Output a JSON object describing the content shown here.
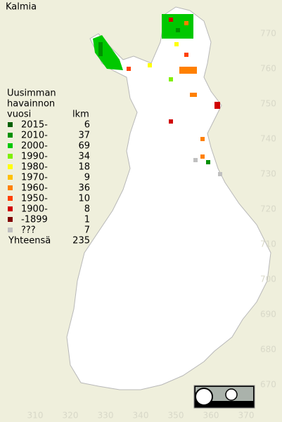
{
  "title": "Kalmia",
  "legend": {
    "header": [
      "Uusimman",
      "havainnon",
      "vuosi"
    ],
    "count_header": "lkm",
    "rows": [
      {
        "label": "2015-",
        "count": 6,
        "color": "#006000"
      },
      {
        "label": "2010-",
        "count": 37,
        "color": "#009000"
      },
      {
        "label": "2000-",
        "count": 69,
        "color": "#00c800"
      },
      {
        "label": "1990-",
        "count": 34,
        "color": "#80f000"
      },
      {
        "label": "1980-",
        "count": 18,
        "color": "#ffff00"
      },
      {
        "label": "1970-",
        "count": 9,
        "color": "#ffc000"
      },
      {
        "label": "1960-",
        "count": 36,
        "color": "#ff8000"
      },
      {
        "label": "1950-",
        "count": 10,
        "color": "#ff4000"
      },
      {
        "label": "1900-",
        "count": 8,
        "color": "#d00000"
      },
      {
        "label": "-1899",
        "count": 1,
        "color": "#800000"
      },
      {
        "label": "???",
        "count": 7,
        "color": "#c0c0c0"
      }
    ],
    "total_label": "Yhteensä",
    "total": 235
  },
  "map": {
    "xticks": [
      310,
      320,
      330,
      340,
      350,
      360,
      370
    ],
    "yticks": [
      670,
      680,
      690,
      700,
      710,
      720,
      730,
      740,
      750,
      760,
      770
    ]
  }
}
